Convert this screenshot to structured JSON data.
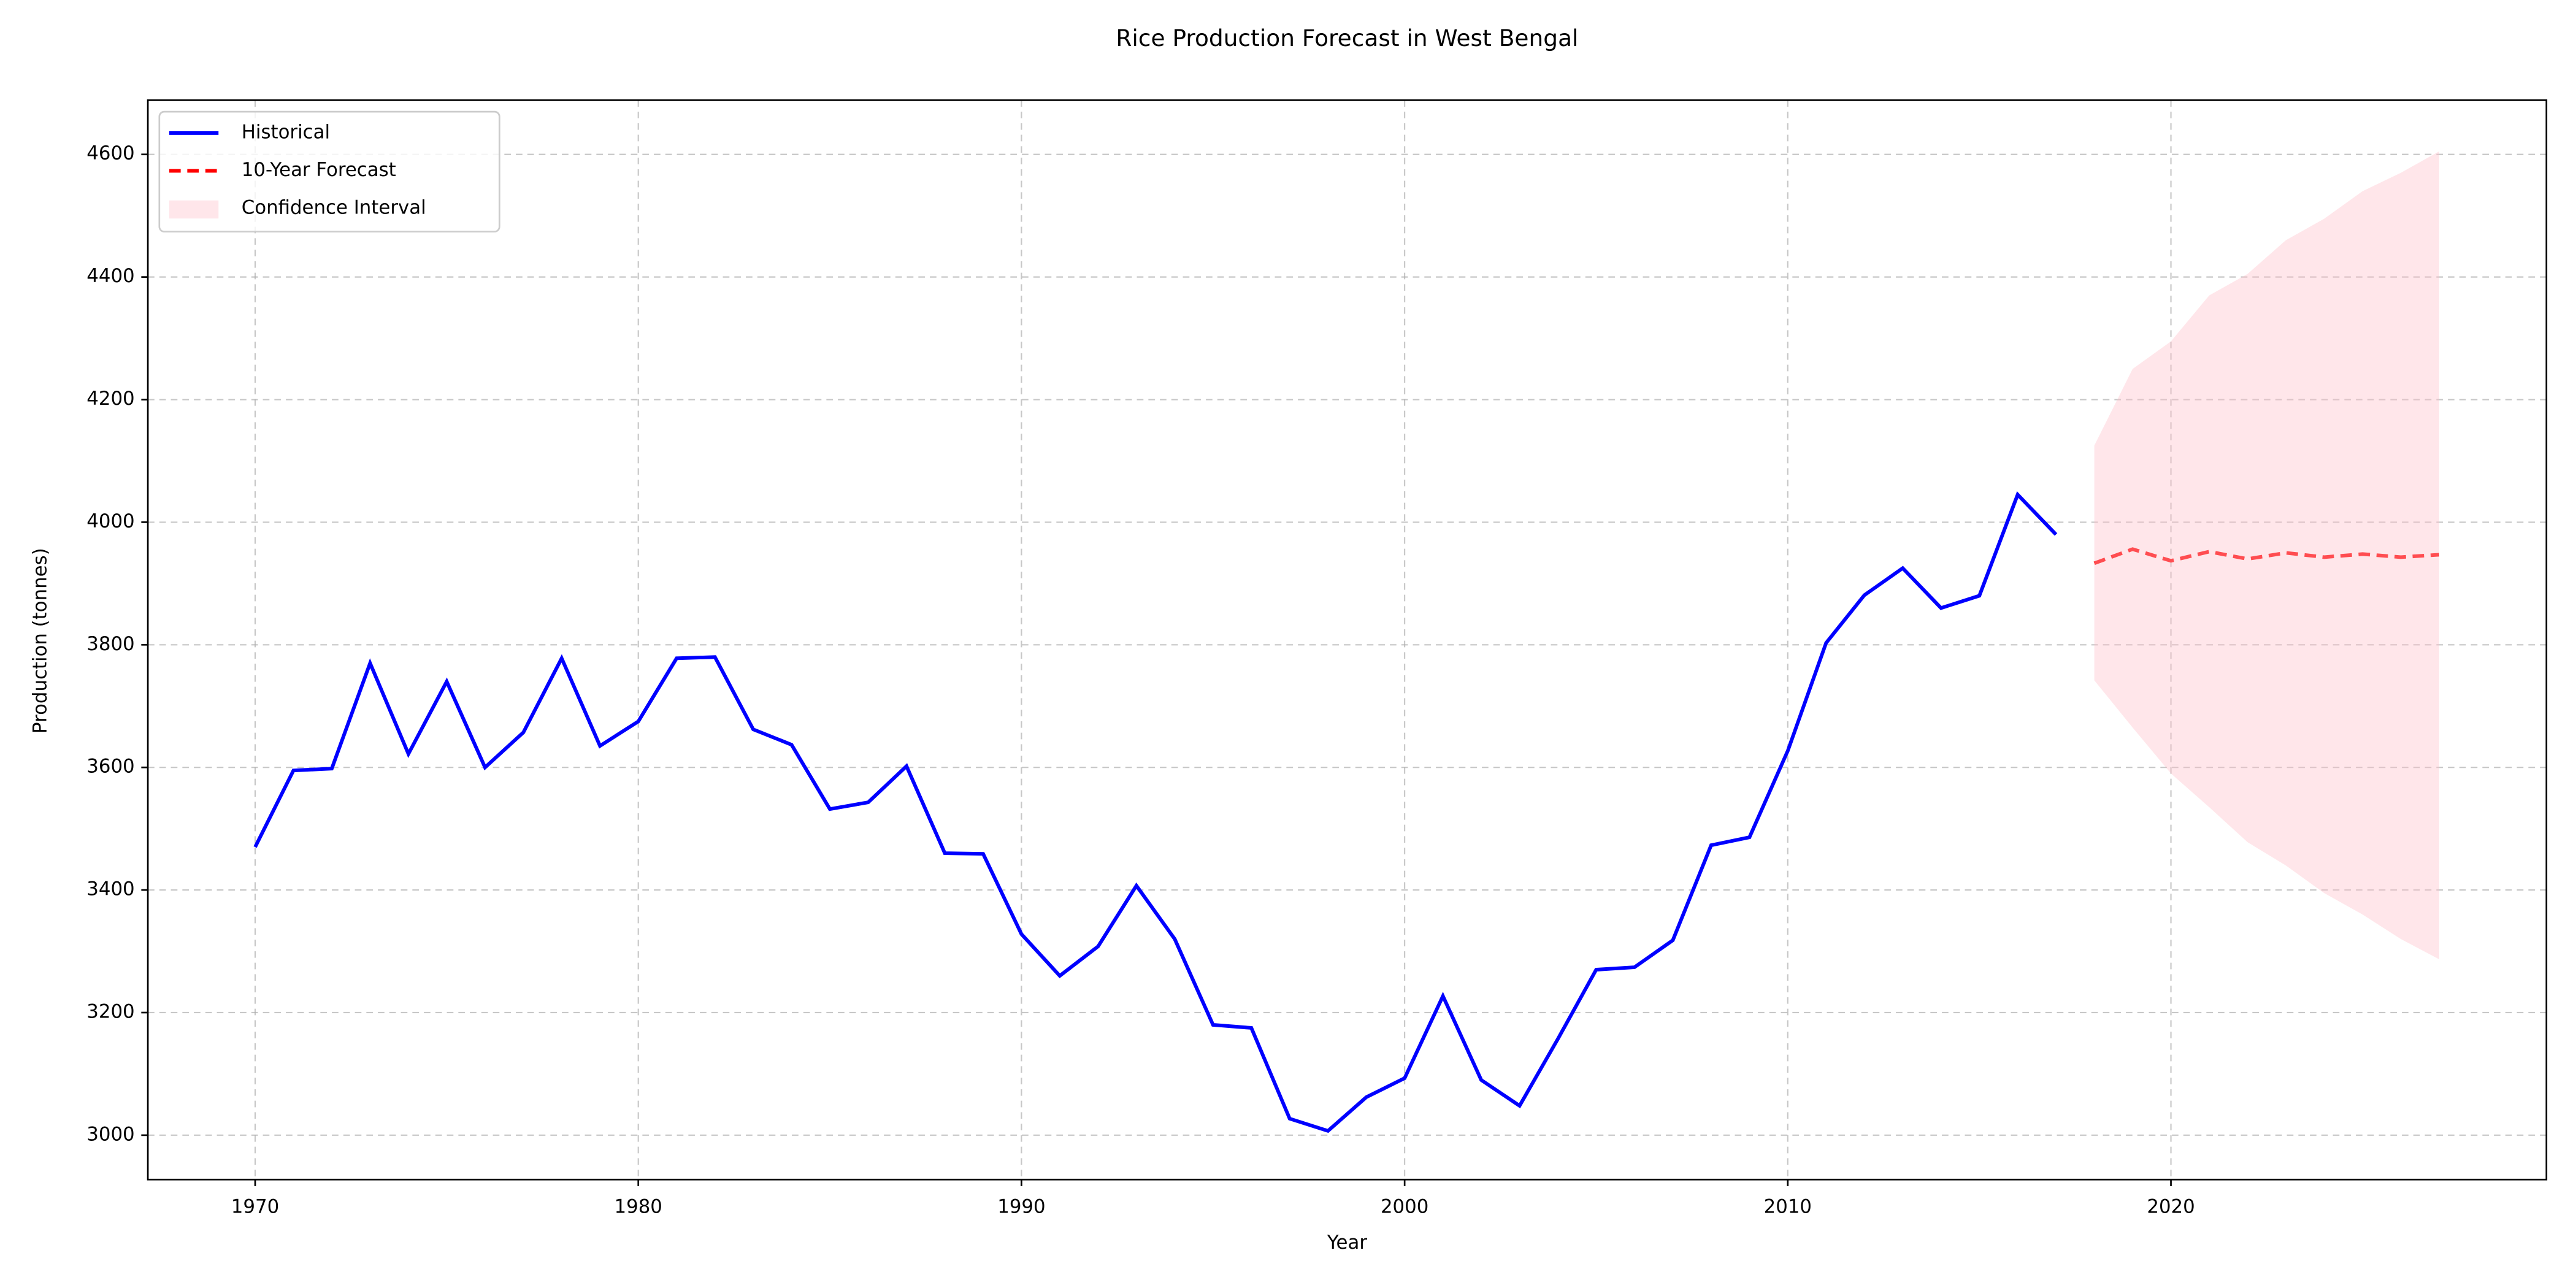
{
  "chart_data": {
    "type": "line",
    "title": "Rice Production Forecast in West Bengal",
    "x_label": "Year",
    "y_label": "Production (tonnes)",
    "xlim": [
      1967.2,
      2029.8
    ],
    "xticks": [
      1970,
      1980,
      1990,
      2000,
      2010,
      2020
    ],
    "ylim": [
      2927.6,
      4688.4
    ],
    "yticks": [
      3000,
      3200,
      3400,
      3600,
      3800,
      4000,
      4200,
      4400,
      4600
    ],
    "grid": true,
    "legend": "upper left",
    "series": [
      {
        "name": "Historical",
        "color": "#0000ff",
        "style": "solid",
        "x": [
          1970,
          1971,
          1972,
          1973,
          1974,
          1975,
          1976,
          1977,
          1978,
          1979,
          1980,
          1981,
          1982,
          1983,
          1984,
          1985,
          1986,
          1987,
          1988,
          1989,
          1990,
          1991,
          1992,
          1993,
          1994,
          1995,
          1996,
          1997,
          1998,
          1999,
          2000,
          2001,
          2002,
          2003,
          2004,
          2005,
          2006,
          2007,
          2008,
          2009,
          2010,
          2011,
          2012,
          2013,
          2014,
          2015,
          2016,
          2017
        ],
        "values": [
          3470,
          3595,
          3598,
          3770,
          3622,
          3740,
          3600,
          3657,
          3778,
          3635,
          3675,
          3778,
          3780,
          3662,
          3637,
          3532,
          3543,
          3602,
          3460,
          3459,
          3328,
          3260,
          3308,
          3407,
          3320,
          3180,
          3175,
          3027,
          3007,
          3062,
          3093,
          3227,
          3090,
          3048,
          3157,
          3270,
          3274,
          3318,
          3473,
          3486,
          3627,
          3803,
          3881,
          3925,
          3860,
          3880,
          4045,
          3980
        ]
      },
      {
        "name": "10-Year Forecast",
        "color": "#ff0000",
        "style": "dashed",
        "x": [
          2018,
          2019,
          2020,
          2021,
          2022,
          2023,
          2024,
          2025,
          2026,
          2027
        ],
        "values": [
          3933,
          3956,
          3937,
          3952,
          3940,
          3950,
          3943,
          3948,
          3943,
          3947
        ]
      },
      {
        "name": "Confidence Interval",
        "color": "#ffc0cb",
        "style": "band",
        "x": [
          2018,
          2019,
          2020,
          2021,
          2022,
          2023,
          2024,
          2025,
          2026,
          2027
        ],
        "lower": [
          3742,
          3665,
          3590,
          3535,
          3478,
          3440,
          3395,
          3360,
          3320,
          3287
        ],
        "upper": [
          4125,
          4250,
          4295,
          4370,
          4405,
          4460,
          4495,
          4540,
          4570,
          4605
        ]
      }
    ]
  }
}
